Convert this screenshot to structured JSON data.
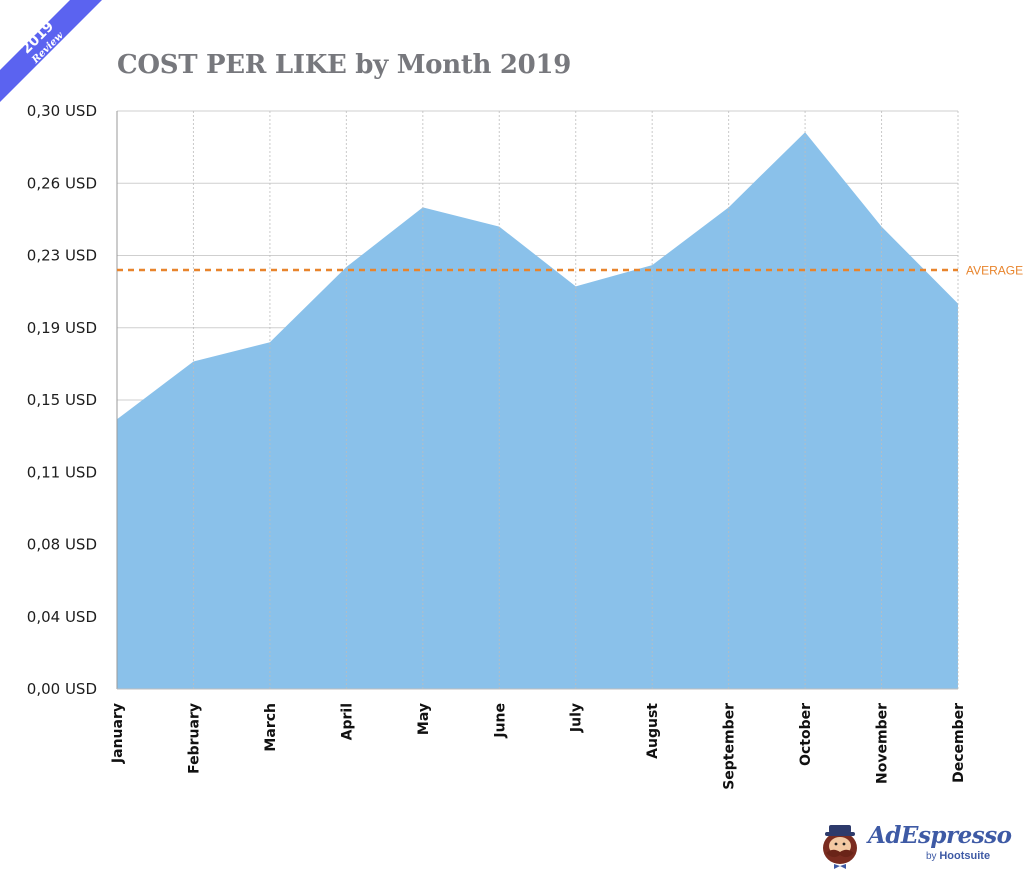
{
  "badge": {
    "year": "2019",
    "text": "Review",
    "color": "#5b63f0"
  },
  "chart_data": {
    "type": "area",
    "title": "COST PER LIKE by Month 2019",
    "xlabel": "",
    "ylabel": "",
    "categories": [
      "January",
      "February",
      "March",
      "April",
      "May",
      "June",
      "July",
      "August",
      "September",
      "October",
      "November",
      "December"
    ],
    "series": [
      {
        "name": "Cost per like (USD)",
        "values": [
          0.14,
          0.17,
          0.18,
          0.219,
          0.25,
          0.24,
          0.209,
          0.22,
          0.25,
          0.289,
          0.24,
          0.2
        ],
        "color": "#8ac1ea"
      }
    ],
    "average": {
      "label": "AVERAGE",
      "value": 0.2175,
      "color": "#e8842c"
    },
    "ylim": [
      0,
      0.3
    ],
    "yticks": [
      0,
      0.0375,
      0.075,
      0.1125,
      0.15,
      0.1875,
      0.225,
      0.2625,
      0.3
    ],
    "ytick_labels": [
      "0,00 USD",
      "0,04 USD",
      "0,08 USD",
      "0,11 USD",
      "0,15 USD",
      "0,19 USD",
      "0,23 USD",
      "0,26 USD",
      "0,30 USD"
    ],
    "grid": true,
    "legend": "none"
  },
  "logo": {
    "brand": "AdEspresso",
    "by": "by",
    "parent": "Hootsuite"
  }
}
